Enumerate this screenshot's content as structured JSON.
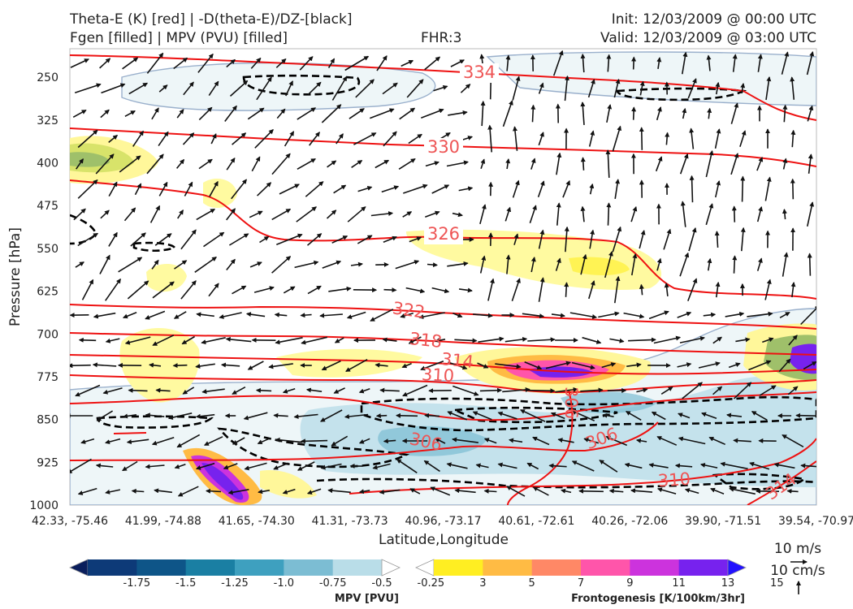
{
  "header": {
    "title_line1": "Theta-E (K) [red] | -D(theta-E)/DZ-[black]",
    "title_line2": "Fgen [filled] | MPV (PVU) [filled]",
    "fhr": "FHR:3",
    "init": "Init: 12/03/2009 @ 00:00 UTC",
    "valid": "Valid: 12/03/2009 @ 03:00 UTC"
  },
  "chart_data": {
    "type": "cross-section",
    "xlabel": "Latitude,Longitude",
    "ylabel": "Pressure [hPa]",
    "y_log": false,
    "y_inverted": true,
    "ylim": [
      1000,
      200
    ],
    "yticks": [
      250,
      325,
      400,
      475,
      550,
      625,
      700,
      775,
      850,
      925,
      1000
    ],
    "xticks": [
      "42.33, -75.46",
      "41.99, -74.88",
      "41.65, -74.30",
      "41.31, -73.73",
      "40.96, -73.17",
      "40.61, -72.61",
      "40.26, -72.06",
      "39.90, -71.51",
      "39.54, -70.97"
    ],
    "theta_e_contour_labels": [
      "334",
      "330",
      "326",
      "322",
      "318",
      "314",
      "310",
      "306",
      "306",
      "306",
      "310",
      "314"
    ],
    "theta_e_color": "#ee1111",
    "stability_color": "#000000",
    "wind_vector_key": {
      "horizontal": "10 m/s",
      "vertical": "10 cm/s"
    },
    "colorbars": [
      {
        "name": "MPV [PVU]",
        "labels": [
          "-1.75",
          "-1.5",
          "-1.25",
          "-1.0",
          "-0.75",
          "-0.5",
          "-0.25"
        ],
        "colors": [
          "#0a1e5c",
          "#0d3a78",
          "#0e5588",
          "#1a7fa3",
          "#3ea0bf",
          "#7cbdd3",
          "#b9dde8",
          "#ffffff"
        ]
      },
      {
        "name": "Frontogenesis [K/100km/3hr]",
        "labels": [
          "3",
          "5",
          "7",
          "9",
          "11",
          "13",
          "15"
        ],
        "colors": [
          "#ffffff",
          "#ffee22",
          "#ffbb44",
          "#ff8866",
          "#ff55aa",
          "#cc33dd",
          "#7722ee",
          "#2211ff"
        ]
      }
    ]
  }
}
